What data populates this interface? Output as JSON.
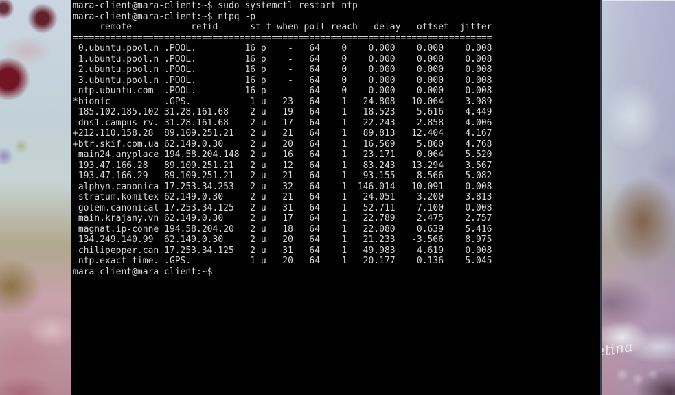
{
  "wallpaper": {
    "signature": "etina"
  },
  "terminal": {
    "colors": {
      "background": "#010101",
      "text": "#d8d8d8"
    },
    "prompt": "mara-client@mara-client:~$",
    "commands": [
      "sudo systemctl restart ntp",
      "ntpq -p"
    ],
    "table": {
      "header": "     remote           refid      st t when poll reach   delay   offset  jitter",
      "columns": [
        "remote",
        "refid",
        "st",
        "t",
        "when",
        "poll",
        "reach",
        "delay",
        "offset",
        "jitter"
      ],
      "separator_char": "=",
      "separator_length": 78,
      "rows": [
        {
          "tally": " ",
          "remote": "0.ubuntu.pool.n",
          "refid": ".POOL.",
          "st": "16",
          "t": "p",
          "when": "-",
          "poll": "64",
          "reach": "0",
          "delay": "0.000",
          "offset": "0.000",
          "jitter": "0.008"
        },
        {
          "tally": " ",
          "remote": "1.ubuntu.pool.n",
          "refid": ".POOL.",
          "st": "16",
          "t": "p",
          "when": "-",
          "poll": "64",
          "reach": "0",
          "delay": "0.000",
          "offset": "0.000",
          "jitter": "0.008"
        },
        {
          "tally": " ",
          "remote": "2.ubuntu.pool.n",
          "refid": ".POOL.",
          "st": "16",
          "t": "p",
          "when": "-",
          "poll": "64",
          "reach": "0",
          "delay": "0.000",
          "offset": "0.000",
          "jitter": "0.008"
        },
        {
          "tally": " ",
          "remote": "3.ubuntu.pool.n",
          "refid": ".POOL.",
          "st": "16",
          "t": "p",
          "when": "-",
          "poll": "64",
          "reach": "0",
          "delay": "0.000",
          "offset": "0.000",
          "jitter": "0.008"
        },
        {
          "tally": " ",
          "remote": "ntp.ubuntu.com",
          "refid": ".POOL.",
          "st": "16",
          "t": "p",
          "when": "-",
          "poll": "64",
          "reach": "0",
          "delay": "0.000",
          "offset": "0.000",
          "jitter": "0.008"
        },
        {
          "tally": "*",
          "remote": "bionic",
          "refid": ".GPS.",
          "st": "1",
          "t": "u",
          "when": "23",
          "poll": "64",
          "reach": "1",
          "delay": "24.808",
          "offset": "10.064",
          "jitter": "3.989"
        },
        {
          "tally": " ",
          "remote": "185.102.185.102",
          "refid": "31.28.161.68",
          "st": "2",
          "t": "u",
          "when": "19",
          "poll": "64",
          "reach": "1",
          "delay": "18.523",
          "offset": "5.616",
          "jitter": "4.449"
        },
        {
          "tally": " ",
          "remote": "dns1.campus-rv.",
          "refid": "31.28.161.68",
          "st": "2",
          "t": "u",
          "when": "17",
          "poll": "64",
          "reach": "1",
          "delay": "22.243",
          "offset": "2.858",
          "jitter": "4.006"
        },
        {
          "tally": "+",
          "remote": "212.110.158.28",
          "refid": "89.109.251.21",
          "st": "2",
          "t": "u",
          "when": "21",
          "poll": "64",
          "reach": "1",
          "delay": "89.813",
          "offset": "12.404",
          "jitter": "4.167"
        },
        {
          "tally": "+",
          "remote": "btr.skif.com.ua",
          "refid": "62.149.0.30",
          "st": "2",
          "t": "u",
          "when": "20",
          "poll": "64",
          "reach": "1",
          "delay": "16.569",
          "offset": "5.860",
          "jitter": "4.768"
        },
        {
          "tally": " ",
          "remote": "main24.anyplace",
          "refid": "194.58.204.148",
          "st": "2",
          "t": "u",
          "when": "16",
          "poll": "64",
          "reach": "1",
          "delay": "23.171",
          "offset": "0.064",
          "jitter": "5.520"
        },
        {
          "tally": " ",
          "remote": "193.47.166.28",
          "refid": "89.109.251.21",
          "st": "2",
          "t": "u",
          "when": "12",
          "poll": "64",
          "reach": "1",
          "delay": "83.243",
          "offset": "13.294",
          "jitter": "3.567"
        },
        {
          "tally": " ",
          "remote": "193.47.166.29",
          "refid": "89.109.251.21",
          "st": "2",
          "t": "u",
          "when": "21",
          "poll": "64",
          "reach": "1",
          "delay": "93.155",
          "offset": "8.566",
          "jitter": "5.082"
        },
        {
          "tally": " ",
          "remote": "alphyn.canonica",
          "refid": "17.253.34.253",
          "st": "2",
          "t": "u",
          "when": "32",
          "poll": "64",
          "reach": "1",
          "delay": "146.014",
          "offset": "10.091",
          "jitter": "0.008"
        },
        {
          "tally": " ",
          "remote": "stratum.komitex",
          "refid": "62.149.0.30",
          "st": "2",
          "t": "u",
          "when": "21",
          "poll": "64",
          "reach": "1",
          "delay": "24.051",
          "offset": "3.200",
          "jitter": "3.813"
        },
        {
          "tally": " ",
          "remote": "golem.canonical",
          "refid": "17.253.34.125",
          "st": "2",
          "t": "u",
          "when": "31",
          "poll": "64",
          "reach": "1",
          "delay": "52.711",
          "offset": "7.100",
          "jitter": "0.008"
        },
        {
          "tally": " ",
          "remote": "main.krajany.vn",
          "refid": "62.149.0.30",
          "st": "2",
          "t": "u",
          "when": "17",
          "poll": "64",
          "reach": "1",
          "delay": "22.789",
          "offset": "2.475",
          "jitter": "2.757"
        },
        {
          "tally": " ",
          "remote": "magnat.ip-conne",
          "refid": "194.58.204.20",
          "st": "2",
          "t": "u",
          "when": "18",
          "poll": "64",
          "reach": "1",
          "delay": "22.080",
          "offset": "0.639",
          "jitter": "5.416"
        },
        {
          "tally": " ",
          "remote": "134.249.140.99",
          "refid": "62.149.0.30",
          "st": "2",
          "t": "u",
          "when": "20",
          "poll": "64",
          "reach": "1",
          "delay": "21.233",
          "offset": "-3.566",
          "jitter": "8.975"
        },
        {
          "tally": " ",
          "remote": "chilipepper.can",
          "refid": "17.253.34.125",
          "st": "2",
          "t": "u",
          "when": "31",
          "poll": "64",
          "reach": "1",
          "delay": "49.983",
          "offset": "4.619",
          "jitter": "0.008"
        },
        {
          "tally": " ",
          "remote": "ntp.exact-time.",
          "refid": ".GPS.",
          "st": "1",
          "t": "u",
          "when": "20",
          "poll": "64",
          "reach": "1",
          "delay": "20.177",
          "offset": "0.136",
          "jitter": "5.045"
        }
      ]
    }
  }
}
